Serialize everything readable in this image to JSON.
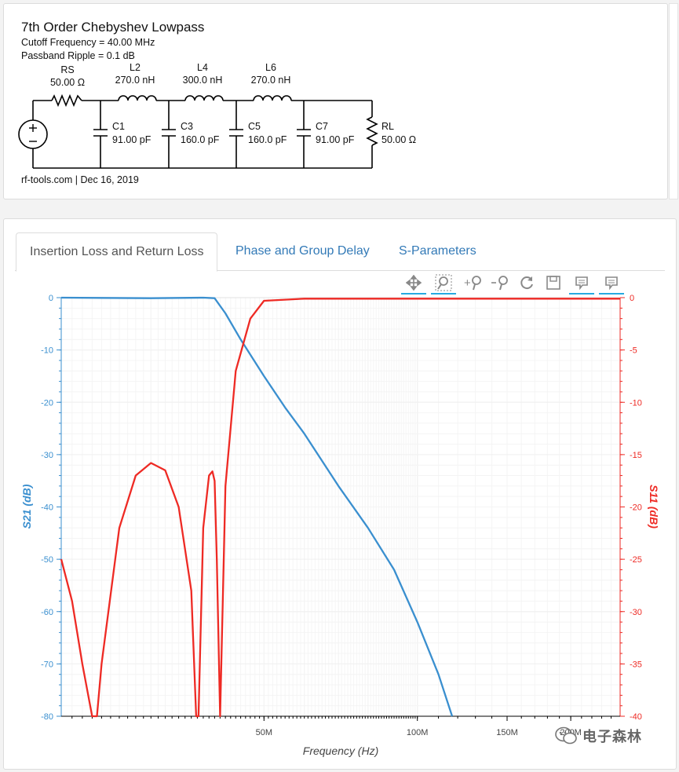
{
  "schematic": {
    "title": "7th Order Chebyshev Lowpass",
    "cutoff": "Cutoff Frequency = 40.00 MHz",
    "ripple": "Passband Ripple = 0.1 dB",
    "footer": "rf-tools.com | Dec 16, 2019",
    "components": [
      {
        "name": "RS",
        "value": "50.00 Ω"
      },
      {
        "name": "L2",
        "value": "270.0 nH"
      },
      {
        "name": "L4",
        "value": "300.0 nH"
      },
      {
        "name": "L6",
        "value": "270.0 nH"
      },
      {
        "name": "C1",
        "value": "91.00 pF"
      },
      {
        "name": "C3",
        "value": "160.0 pF"
      },
      {
        "name": "C5",
        "value": "160.0 pF"
      },
      {
        "name": "C7",
        "value": "91.00 pF"
      },
      {
        "name": "RL",
        "value": "50.00 Ω"
      }
    ]
  },
  "tabs": [
    {
      "label": "Insertion Loss and Return Loss",
      "active": true
    },
    {
      "label": "Phase and Group Delay",
      "active": false
    },
    {
      "label": "S-Parameters",
      "active": false
    }
  ],
  "toolbar": [
    {
      "icon": "pan-icon",
      "active": true
    },
    {
      "icon": "box-zoom-icon",
      "active": true
    },
    {
      "icon": "zoom-in-icon",
      "active": false
    },
    {
      "icon": "zoom-out-icon",
      "active": false
    },
    {
      "icon": "reset-icon",
      "active": false
    },
    {
      "icon": "save-icon",
      "active": false
    },
    {
      "icon": "hover-icon",
      "active": true
    },
    {
      "icon": "hover-icon",
      "active": true
    }
  ],
  "watermark": "电子森林",
  "chart_data": {
    "type": "line",
    "xlabel": "Frequency (Hz)",
    "ylabel": "S21 (dB)",
    "y2label": "S11 (dB)",
    "x_scale": "log",
    "x_ticks": [
      "50M",
      "100M",
      "150M",
      "200M"
    ],
    "y_ticks": [
      "0",
      "-10",
      "-20",
      "-30",
      "-40",
      "-50",
      "-60",
      "-70",
      "-80"
    ],
    "y2_ticks": [
      "0",
      "-5",
      "-10",
      "-15",
      "-20",
      "-25",
      "-30",
      "-35",
      "-40"
    ],
    "xlim": [
      20000000,
      250000000
    ],
    "ylim": [
      -80,
      0
    ],
    "y2lim": [
      -40,
      0
    ],
    "grid": true,
    "series": [
      {
        "name": "S21",
        "axis": "left",
        "color": "#3a8fcf",
        "x": [
          20000000.0,
          30000000.0,
          38000000.0,
          40000000.0,
          42000000.0,
          45000000.0,
          50000000.0,
          55000000.0,
          60000000.0,
          70000000.0,
          80000000.0,
          90000000.0,
          100000000.0,
          110000000.0,
          117000000.0
        ],
        "y": [
          0,
          -0.1,
          0,
          -0.1,
          -3,
          -8,
          -15,
          -21,
          -26,
          -36,
          -44,
          -52,
          -62,
          -72,
          -80
        ]
      },
      {
        "name": "S11",
        "axis": "right",
        "color": "#ee2a24",
        "x": [
          20000000.0,
          21000000.0,
          22000000.0,
          23000000.0,
          23500000.0,
          24000000.0,
          26000000.0,
          28000000.0,
          30000000.0,
          32000000.0,
          34000000.0,
          36000000.0,
          36800000.0,
          37200000.0,
          38000000.0,
          39000000.0,
          39600000.0,
          40000000.0,
          40400000.0,
          41000000.0,
          42000000.0,
          44000000.0,
          47000000.0,
          50000000.0,
          60000000.0,
          250000000.0
        ],
        "y": [
          -25,
          -29,
          -35,
          -40,
          -40,
          -35,
          -22,
          -17,
          -15.8,
          -16.5,
          -20,
          -28,
          -40,
          -40,
          -22,
          -17,
          -16.6,
          -17.5,
          -25,
          -40,
          -18,
          -7,
          -2,
          -0.3,
          -0.1,
          -0.1
        ]
      }
    ]
  }
}
